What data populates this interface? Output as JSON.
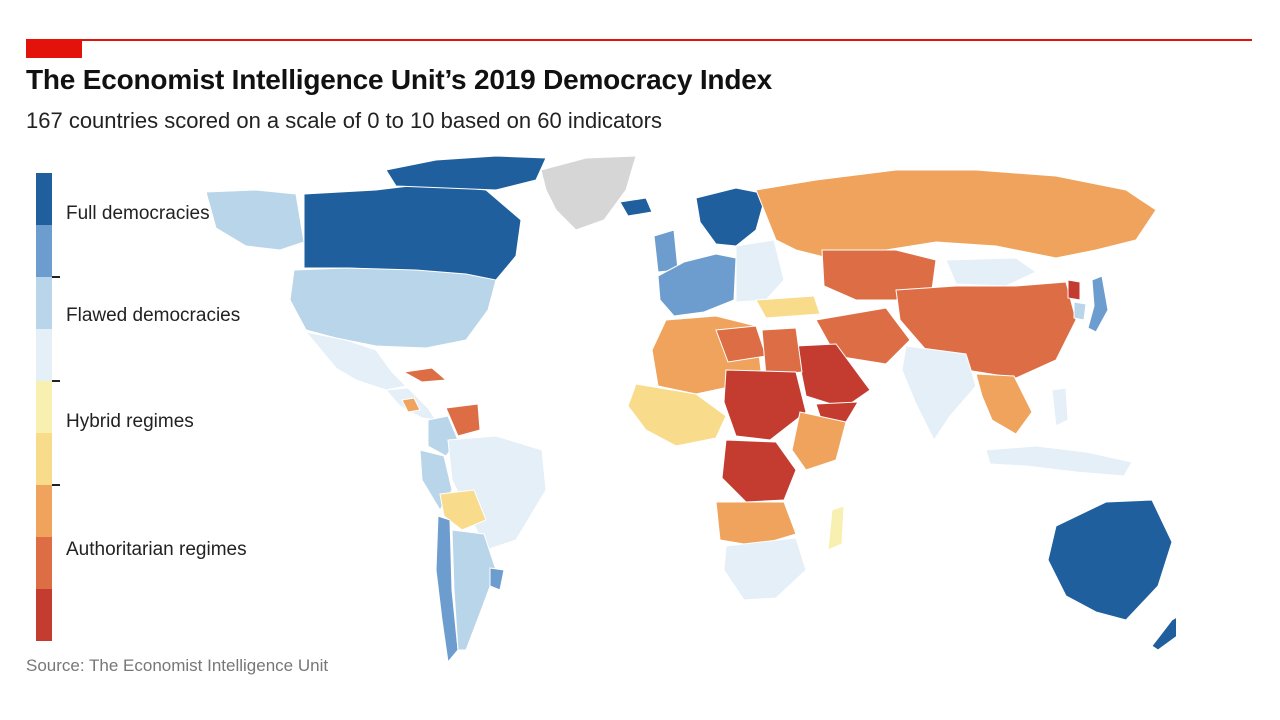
{
  "header": {
    "title": "The Economist Intelligence Unit’s 2019 Democracy Index",
    "subtitle": "167 countries scored on a scale of 0 to 10 based on 60 indicators",
    "accent_color": "#e3120b"
  },
  "legend": {
    "categories": [
      {
        "label": "Full democracies",
        "colors": [
          "#1f5f9e",
          "#6d9dcf"
        ]
      },
      {
        "label": "Flawed democracies",
        "colors": [
          "#b9d5ea",
          "#e4eff7"
        ]
      },
      {
        "label": "Hybrid regimes",
        "colors": [
          "#f7f0b0",
          "#f8dc8c"
        ]
      },
      {
        "label": "Authoritarian regimes",
        "colors": [
          "#efa35c",
          "#dd6d45",
          "#c43b30"
        ]
      }
    ]
  },
  "no_data_color": "#d6d6d6",
  "source": "Source: The Economist Intelligence Unit",
  "map": {
    "regions": [
      {
        "name": "alaska",
        "category": "flawed-high"
      },
      {
        "name": "canada",
        "category": "full-high"
      },
      {
        "name": "canadian-arctic",
        "category": "full-high"
      },
      {
        "name": "greenland",
        "category": "no-data"
      },
      {
        "name": "usa",
        "category": "flawed-high"
      },
      {
        "name": "mexico",
        "category": "flawed-low"
      },
      {
        "name": "central-america",
        "category": "flawed-low"
      },
      {
        "name": "cuba",
        "category": "auth-mid"
      },
      {
        "name": "nicaragua",
        "category": "auth-low"
      },
      {
        "name": "venezuela",
        "category": "auth-mid"
      },
      {
        "name": "colombia",
        "category": "flawed-high"
      },
      {
        "name": "brazil",
        "category": "flawed-low"
      },
      {
        "name": "peru",
        "category": "flawed-high"
      },
      {
        "name": "bolivia",
        "category": "hybrid-low"
      },
      {
        "name": "chile",
        "category": "full-low"
      },
      {
        "name": "argentina",
        "category": "flawed-high"
      },
      {
        "name": "uruguay",
        "category": "full-low"
      },
      {
        "name": "iceland",
        "category": "full-high"
      },
      {
        "name": "uk-ireland",
        "category": "full-low"
      },
      {
        "name": "scandinavia",
        "category": "full-high"
      },
      {
        "name": "western-europe",
        "category": "full-low"
      },
      {
        "name": "eastern-europe",
        "category": "flawed-low"
      },
      {
        "name": "turkey",
        "category": "hybrid-low"
      },
      {
        "name": "russia",
        "category": "auth-low"
      },
      {
        "name": "central-asia",
        "category": "auth-mid"
      },
      {
        "name": "mongolia",
        "category": "flawed-low"
      },
      {
        "name": "china",
        "category": "auth-mid"
      },
      {
        "name": "north-korea",
        "category": "auth-high"
      },
      {
        "name": "south-korea",
        "category": "flawed-high"
      },
      {
        "name": "japan",
        "category": "full-low"
      },
      {
        "name": "iran",
        "category": "auth-mid"
      },
      {
        "name": "saudi-arabia",
        "category": "auth-high"
      },
      {
        "name": "yemen",
        "category": "auth-high"
      },
      {
        "name": "india",
        "category": "flawed-low"
      },
      {
        "name": "mainland-southeast-asia",
        "category": "auth-low"
      },
      {
        "name": "indonesia",
        "category": "flawed-low"
      },
      {
        "name": "philippines",
        "category": "flawed-low"
      },
      {
        "name": "australia",
        "category": "full-high"
      },
      {
        "name": "new-zealand",
        "category": "full-high"
      },
      {
        "name": "north-africa",
        "category": "auth-low"
      },
      {
        "name": "libya",
        "category": "auth-mid"
      },
      {
        "name": "egypt",
        "category": "auth-mid"
      },
      {
        "name": "west-africa",
        "category": "hybrid-low"
      },
      {
        "name": "chad-sudan",
        "category": "auth-high"
      },
      {
        "name": "ethiopia-east",
        "category": "auth-low"
      },
      {
        "name": "drc",
        "category": "auth-high"
      },
      {
        "name": "angola-zambia",
        "category": "auth-low"
      },
      {
        "name": "southern-africa",
        "category": "flawed-low"
      },
      {
        "name": "madagascar",
        "category": "hybrid-high"
      }
    ]
  }
}
